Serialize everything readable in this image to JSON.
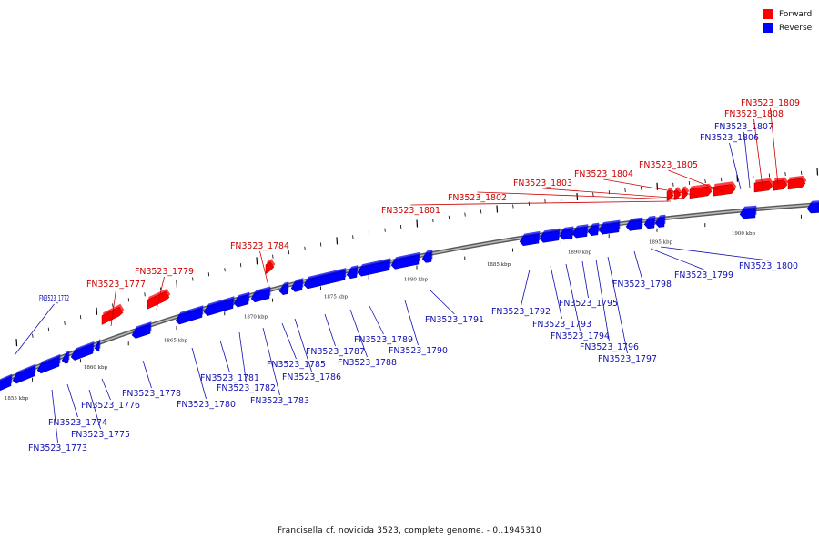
{
  "legend": {
    "forward_label": "Forward",
    "reverse_label": "Reverse",
    "forward_color": "#ff0000",
    "reverse_color": "#0000ff"
  },
  "caption": "Francisella cf. novicida 3523, complete genome. - 0..1945310",
  "colors": {
    "forward": "#ff0000",
    "reverse": "#0000ff",
    "label_forward": "#cc0000",
    "label_reverse": "#1010b0",
    "backbone": "#808080"
  },
  "kbp_labels": [
    "1855 kbp",
    "1860 kbp",
    "1865 kbp",
    "1870 kbp",
    "1875 kbp",
    "1880 kbp",
    "1885 kbp",
    "1890 kbp",
    "1895 kbp",
    "1900 kbp"
  ],
  "gene_labels": [
    {
      "text": "FN3523_1772",
      "strand": "reverse"
    },
    {
      "text": "FN3523_1773",
      "strand": "reverse"
    },
    {
      "text": "FN3523_1774",
      "strand": "reverse"
    },
    {
      "text": "FN3523_1775",
      "strand": "reverse"
    },
    {
      "text": "FN3523_1776",
      "strand": "reverse"
    },
    {
      "text": "FN3523_1777",
      "strand": "forward"
    },
    {
      "text": "FN3523_1778",
      "strand": "reverse"
    },
    {
      "text": "FN3523_1779",
      "strand": "forward"
    },
    {
      "text": "FN3523_1780",
      "strand": "reverse"
    },
    {
      "text": "FN3523_1781",
      "strand": "reverse"
    },
    {
      "text": "FN3523_1782",
      "strand": "reverse"
    },
    {
      "text": "FN3523_1783",
      "strand": "reverse"
    },
    {
      "text": "FN3523_1784",
      "strand": "forward"
    },
    {
      "text": "FN3523_1785",
      "strand": "reverse"
    },
    {
      "text": "FN3523_1786",
      "strand": "reverse"
    },
    {
      "text": "FN3523_1787",
      "strand": "reverse"
    },
    {
      "text": "FN3523_1788",
      "strand": "reverse"
    },
    {
      "text": "FN3523_1789",
      "strand": "reverse"
    },
    {
      "text": "FN3523_1790",
      "strand": "reverse"
    },
    {
      "text": "FN3523_1791",
      "strand": "reverse"
    },
    {
      "text": "FN3523_1792",
      "strand": "reverse"
    },
    {
      "text": "FN3523_1793",
      "strand": "reverse"
    },
    {
      "text": "FN3523_1794",
      "strand": "reverse"
    },
    {
      "text": "FN3523_1795",
      "strand": "reverse"
    },
    {
      "text": "FN3523_1796",
      "strand": "reverse"
    },
    {
      "text": "FN3523_1797",
      "strand": "reverse"
    },
    {
      "text": "FN3523_1798",
      "strand": "reverse"
    },
    {
      "text": "FN3523_1799",
      "strand": "reverse"
    },
    {
      "text": "FN3523_1800",
      "strand": "reverse"
    },
    {
      "text": "FN3523_1801",
      "strand": "forward"
    },
    {
      "text": "FN3523_1802",
      "strand": "forward"
    },
    {
      "text": "FN3523_1803",
      "strand": "forward"
    },
    {
      "text": "FN3523_1804",
      "strand": "forward"
    },
    {
      "text": "FN3523_1805",
      "strand": "forward"
    },
    {
      "text": "FN3523_1806",
      "strand": "reverse"
    },
    {
      "text": "FN3523_1807",
      "strand": "reverse"
    },
    {
      "text": "FN3523_1808",
      "strand": "forward"
    },
    {
      "text": "FN3523_1809",
      "strand": "forward"
    }
  ]
}
